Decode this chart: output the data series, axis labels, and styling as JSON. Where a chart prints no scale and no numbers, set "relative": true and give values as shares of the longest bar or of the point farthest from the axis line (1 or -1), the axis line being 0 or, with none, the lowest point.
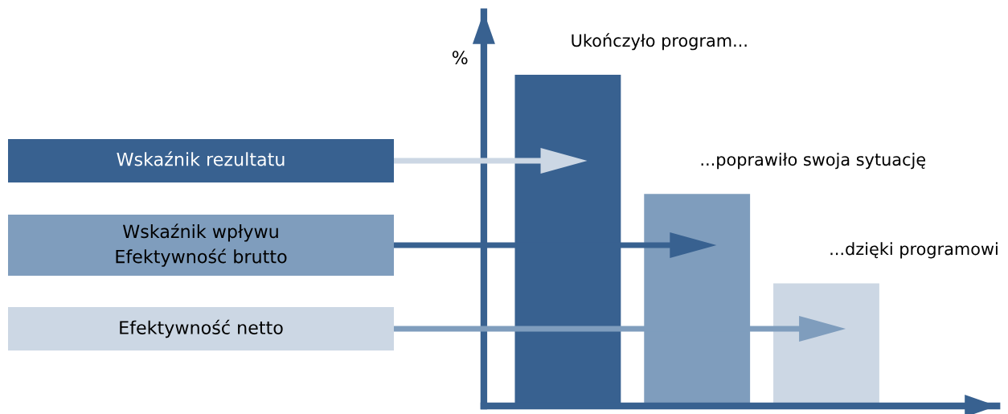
{
  "chart_data": {
    "type": "bar",
    "relative": true,
    "ylabel": "%",
    "categories": [
      null,
      null,
      null
    ],
    "values": [
      1,
      0.64,
      0.37
    ],
    "colors": [
      "#386190",
      "#7f9dbd",
      "#ccd7e4"
    ],
    "annotations": [
      "Ukończyło program...",
      "...poprawiło swoja sytuację",
      "...dzięki programowi",
      "Wskaźnik rezultatu",
      "Wskaźnik wpływu\nEfektywność brutto",
      "Efektywność netto"
    ]
  }
}
